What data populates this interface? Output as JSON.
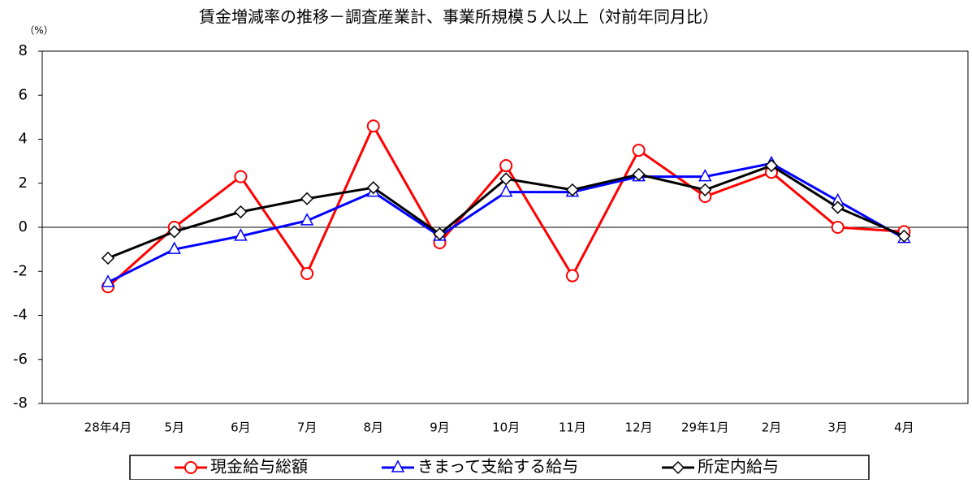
{
  "chart_data": {
    "type": "line",
    "title": "賃金増減率の推移－調査産業計、事業所規模５人以上（対前年同月比）",
    "y_unit": "（%）",
    "categories": [
      "28年4月",
      "5月",
      "6月",
      "7月",
      "8月",
      "9月",
      "10月",
      "11月",
      "12月",
      "29年1月",
      "2月",
      "3月",
      "4月"
    ],
    "series": [
      {
        "name": "現金給与総額",
        "color": "#ff0000",
        "marker": "circle",
        "values": [
          -2.7,
          0.0,
          2.3,
          -2.1,
          4.6,
          -0.7,
          2.8,
          -2.2,
          3.5,
          1.4,
          2.5,
          0.0,
          -0.2
        ]
      },
      {
        "name": "きまって支給する給与",
        "color": "#0000ff",
        "marker": "triangle",
        "values": [
          -2.5,
          -1.0,
          -0.4,
          0.3,
          1.6,
          -0.4,
          1.6,
          1.6,
          2.3,
          2.3,
          2.9,
          1.2,
          -0.5
        ]
      },
      {
        "name": "所定内給与",
        "color": "#000000",
        "marker": "diamond",
        "values": [
          -1.4,
          -0.2,
          0.7,
          1.3,
          1.8,
          -0.3,
          2.2,
          1.7,
          2.4,
          1.7,
          2.8,
          0.9,
          -0.4
        ]
      }
    ],
    "ylim": [
      -8,
      8
    ],
    "yticks": [
      -8,
      -6,
      -4,
      -2,
      0,
      2,
      4,
      6,
      8
    ],
    "grid": false
  }
}
